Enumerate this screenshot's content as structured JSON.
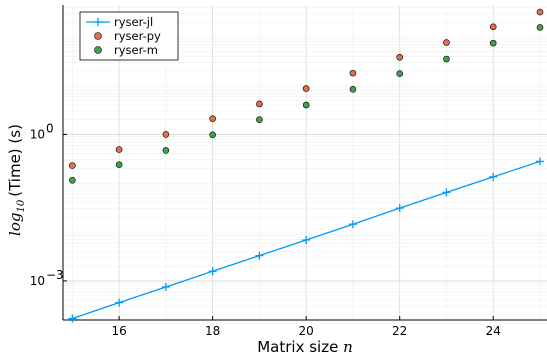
{
  "chart_data": {
    "type": "scatter",
    "title": "",
    "xlabel": {
      "main": "Matrix size ",
      "var": "n"
    },
    "ylabel": {
      "log": "log",
      "sub": "10",
      "rest": "(Time) (s)"
    },
    "xlim": [
      14.8,
      25.15
    ],
    "ylim_log10": [
      -3.8,
      2.65
    ],
    "y_scale": "log10",
    "grid": true,
    "legend_position": "top-left",
    "x_ticks": [
      16,
      18,
      20,
      22,
      24
    ],
    "x_tick_labels": [
      "16",
      "18",
      "20",
      "22",
      "24"
    ],
    "y_ticks_log10": [
      -3,
      0
    ],
    "y_tick_labels": [
      {
        "base": "10",
        "exp": "−3"
      },
      {
        "base": "10",
        "exp": "0"
      }
    ],
    "series": [
      {
        "name": "ryser-jl",
        "style": "line-cross",
        "color": "#009AFA",
        "x": [
          15,
          16,
          17,
          18,
          19,
          20,
          21,
          22,
          23,
          24,
          25
        ],
        "y": [
          0.00017,
          0.00036,
          0.00075,
          0.00158,
          0.0033,
          0.0069,
          0.0145,
          0.031,
          0.065,
          0.135,
          0.28
        ]
      },
      {
        "name": "ryser-py",
        "style": "marker",
        "color": "#E26F46",
        "x": [
          15,
          16,
          17,
          18,
          19,
          20,
          21,
          22,
          23,
          24,
          25
        ],
        "y": [
          0.23,
          0.49,
          1.0,
          2.1,
          4.2,
          8.7,
          18,
          38,
          76,
          160,
          320
        ]
      },
      {
        "name": "ryser-m",
        "style": "marker",
        "color": "#3DA44D",
        "x": [
          15,
          16,
          17,
          18,
          19,
          20,
          21,
          22,
          23,
          24,
          25
        ],
        "y": [
          0.115,
          0.24,
          0.47,
          0.98,
          2.0,
          4.0,
          8.4,
          17.5,
          35,
          74,
          155
        ]
      }
    ]
  }
}
